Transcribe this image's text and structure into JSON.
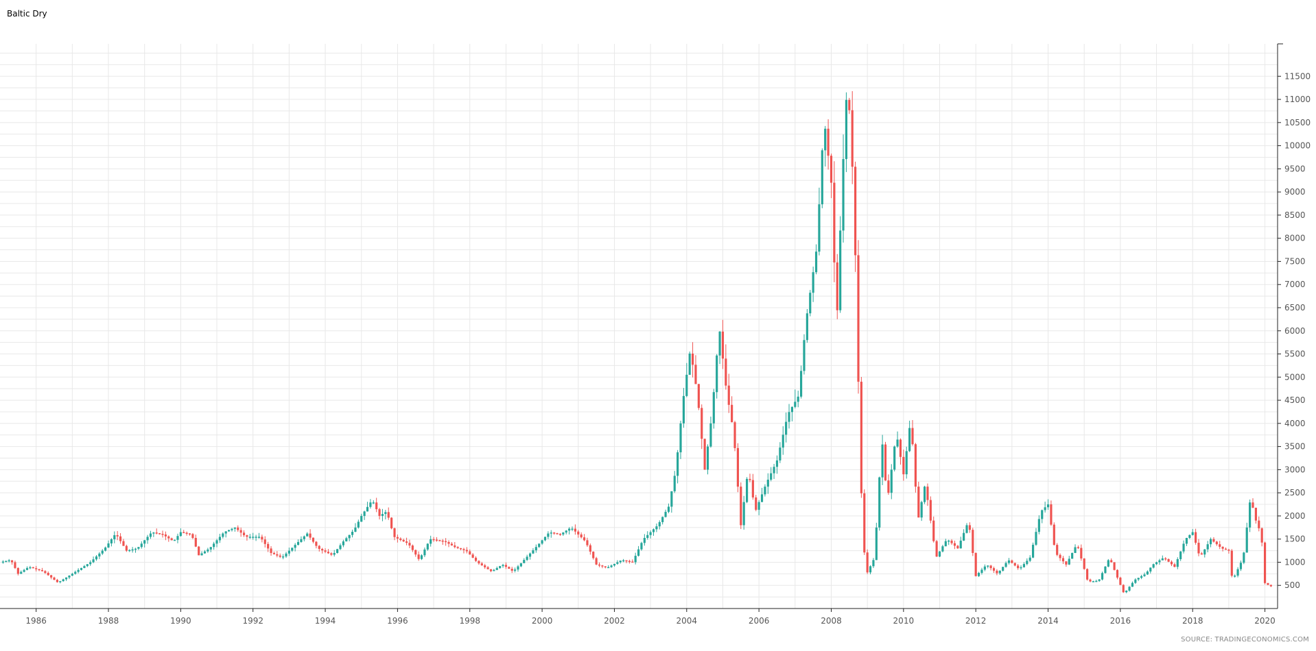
{
  "title": "Baltic Dry",
  "source": "SOURCE: TRADINGECONOMICS.COM",
  "colors": {
    "up": "#26a69a",
    "down": "#ef5350",
    "grid": "#e8e8e8",
    "axis": "#222222"
  },
  "chart_data": {
    "type": "candlestick",
    "title": "Baltic Dry",
    "xlabel": "",
    "ylabel": "",
    "x_range": [
      1985.0,
      2020.35
    ],
    "y_range": [
      0,
      12200
    ],
    "x_ticks": [
      "1986",
      "1988",
      "1990",
      "1992",
      "1994",
      "1996",
      "1998",
      "2000",
      "2002",
      "2004",
      "2006",
      "2008",
      "2010",
      "2012",
      "2014",
      "2016",
      "2018",
      "2020"
    ],
    "y_ticks": [
      "500",
      "1000",
      "1500",
      "2000",
      "2500",
      "3000",
      "3500",
      "4000",
      "4500",
      "5000",
      "5500",
      "6000",
      "6500",
      "7000",
      "7500",
      "8000",
      "8500",
      "9000",
      "9500",
      "10000",
      "10500",
      "11000",
      "11500"
    ],
    "grid": true,
    "y_axis_side": "right",
    "monthly_close_keypoints": [
      [
        1985.0,
        1000
      ],
      [
        1985.3,
        1050
      ],
      [
        1985.5,
        750
      ],
      [
        1985.8,
        900
      ],
      [
        1986.2,
        800
      ],
      [
        1986.6,
        560
      ],
      [
        1987.0,
        750
      ],
      [
        1987.5,
        1000
      ],
      [
        1987.9,
        1300
      ],
      [
        1988.2,
        1620
      ],
      [
        1988.5,
        1250
      ],
      [
        1988.8,
        1300
      ],
      [
        1989.2,
        1650
      ],
      [
        1989.5,
        1600
      ],
      [
        1989.8,
        1450
      ],
      [
        1990.0,
        1650
      ],
      [
        1990.3,
        1600
      ],
      [
        1990.5,
        1150
      ],
      [
        1990.8,
        1300
      ],
      [
        1991.2,
        1650
      ],
      [
        1991.5,
        1750
      ],
      [
        1991.8,
        1550
      ],
      [
        1992.2,
        1550
      ],
      [
        1992.5,
        1200
      ],
      [
        1992.8,
        1100
      ],
      [
        1993.2,
        1400
      ],
      [
        1993.5,
        1620
      ],
      [
        1993.8,
        1300
      ],
      [
        1994.2,
        1150
      ],
      [
        1994.5,
        1450
      ],
      [
        1994.8,
        1700
      ],
      [
        1995.0,
        2000
      ],
      [
        1995.3,
        2350
      ],
      [
        1995.5,
        2000
      ],
      [
        1995.7,
        2100
      ],
      [
        1995.9,
        1550
      ],
      [
        1996.3,
        1400
      ],
      [
        1996.6,
        1050
      ],
      [
        1996.9,
        1500
      ],
      [
        1997.3,
        1450
      ],
      [
        1997.6,
        1320
      ],
      [
        1997.9,
        1250
      ],
      [
        1998.2,
        1000
      ],
      [
        1998.6,
        800
      ],
      [
        1998.9,
        950
      ],
      [
        1999.2,
        800
      ],
      [
        1999.5,
        1050
      ],
      [
        1999.8,
        1300
      ],
      [
        2000.2,
        1650
      ],
      [
        2000.5,
        1600
      ],
      [
        2000.8,
        1750
      ],
      [
        2001.2,
        1450
      ],
      [
        2001.5,
        950
      ],
      [
        2001.8,
        880
      ],
      [
        2002.2,
        1050
      ],
      [
        2002.5,
        1000
      ],
      [
        2002.8,
        1500
      ],
      [
        2003.2,
        1800
      ],
      [
        2003.5,
        2200
      ],
      [
        2003.7,
        3000
      ],
      [
        2003.9,
        4500
      ],
      [
        2004.1,
        5600
      ],
      [
        2004.3,
        4600
      ],
      [
        2004.5,
        3000
      ],
      [
        2004.7,
        4200
      ],
      [
        2004.9,
        6100
      ],
      [
        2005.1,
        4700
      ],
      [
        2005.3,
        3800
      ],
      [
        2005.5,
        1800
      ],
      [
        2005.7,
        3000
      ],
      [
        2005.9,
        2100
      ],
      [
        2006.2,
        2700
      ],
      [
        2006.5,
        3200
      ],
      [
        2006.8,
        4200
      ],
      [
        2007.1,
        4600
      ],
      [
        2007.3,
        6200
      ],
      [
        2007.6,
        7800
      ],
      [
        2007.8,
        10600
      ],
      [
        2008.0,
        9200
      ],
      [
        2008.15,
        6100
      ],
      [
        2008.3,
        9200
      ],
      [
        2008.45,
        11500
      ],
      [
        2008.6,
        9300
      ],
      [
        2008.7,
        6800
      ],
      [
        2008.8,
        3000
      ],
      [
        2008.95,
        700
      ],
      [
        2009.2,
        1100
      ],
      [
        2009.4,
        3700
      ],
      [
        2009.55,
        2300
      ],
      [
        2009.8,
        3800
      ],
      [
        2010.0,
        2900
      ],
      [
        2010.2,
        4100
      ],
      [
        2010.4,
        1900
      ],
      [
        2010.6,
        2700
      ],
      [
        2010.9,
        1100
      ],
      [
        2011.2,
        1500
      ],
      [
        2011.5,
        1300
      ],
      [
        2011.8,
        1900
      ],
      [
        2012.0,
        700
      ],
      [
        2012.3,
        950
      ],
      [
        2012.6,
        750
      ],
      [
        2012.9,
        1050
      ],
      [
        2013.2,
        850
      ],
      [
        2013.5,
        1100
      ],
      [
        2013.8,
        2100
      ],
      [
        2014.0,
        2250
      ],
      [
        2014.2,
        1200
      ],
      [
        2014.5,
        950
      ],
      [
        2014.8,
        1400
      ],
      [
        2015.1,
        580
      ],
      [
        2015.4,
        600
      ],
      [
        2015.7,
        1100
      ],
      [
        2015.9,
        700
      ],
      [
        2016.1,
        320
      ],
      [
        2016.4,
        620
      ],
      [
        2016.7,
        750
      ],
      [
        2016.9,
        950
      ],
      [
        2017.2,
        1100
      ],
      [
        2017.5,
        900
      ],
      [
        2017.8,
        1500
      ],
      [
        2018.0,
        1650
      ],
      [
        2018.2,
        1100
      ],
      [
        2018.5,
        1500
      ],
      [
        2018.8,
        1300
      ],
      [
        2019.0,
        1250
      ],
      [
        2019.1,
        600
      ],
      [
        2019.4,
        1100
      ],
      [
        2019.6,
        2400
      ],
      [
        2019.75,
        1900
      ],
      [
        2019.9,
        1600
      ],
      [
        2020.0,
        550
      ],
      [
        2020.15,
        480
      ]
    ]
  }
}
